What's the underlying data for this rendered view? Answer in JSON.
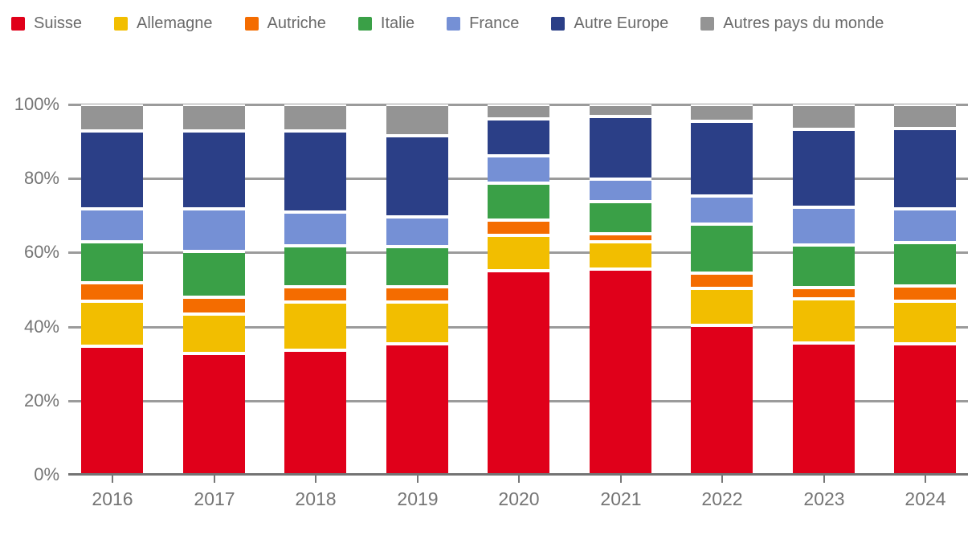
{
  "colors": {
    "background": "#ffffff",
    "gridline": "#9b9b9b",
    "axis_line": "#747474",
    "axis_text": "#757575",
    "legend_text": "#6a6a6a"
  },
  "chart_data": {
    "type": "bar",
    "stacked": true,
    "stacking": "percent",
    "title": "",
    "xlabel": "",
    "ylabel": "",
    "categories": [
      "2016",
      "2017",
      "2018",
      "2019",
      "2020",
      "2021",
      "2022",
      "2023",
      "2024"
    ],
    "series": [
      {
        "name": "Suisse",
        "color": "#e0001a",
        "values": [
          34.8,
          32.7,
          33.6,
          35.4,
          55.0,
          55.5,
          40.3,
          35.5,
          35.4
        ]
      },
      {
        "name": "Allemagne",
        "color": "#f2be00",
        "values": [
          12.1,
          10.6,
          13.0,
          11.3,
          9.7,
          7.5,
          10.0,
          11.9,
          11.5
        ]
      },
      {
        "name": "Autriche",
        "color": "#f46c00",
        "values": [
          4.9,
          4.7,
          4.1,
          4.0,
          4.1,
          2.0,
          4.1,
          3.1,
          4.0
        ]
      },
      {
        "name": "Italie",
        "color": "#3aa047",
        "values": [
          11.0,
          12.3,
          11.2,
          10.8,
          9.9,
          8.8,
          13.2,
          11.6,
          11.8
        ]
      },
      {
        "name": "France",
        "color": "#7590d5",
        "values": [
          9.0,
          11.5,
          9.0,
          8.2,
          7.5,
          6.0,
          7.6,
          10.1,
          9.2
        ]
      },
      {
        "name": "Autre Europe",
        "color": "#2b3f87",
        "values": [
          21.0,
          21.0,
          21.9,
          21.8,
          9.9,
          16.9,
          20.2,
          21.0,
          21.5
        ]
      },
      {
        "name": "Autres pays du monde",
        "color": "#949494",
        "values": [
          7.2,
          7.2,
          7.2,
          8.5,
          3.9,
          3.3,
          4.6,
          6.8,
          6.6
        ]
      }
    ],
    "yticks": [
      "0%",
      "20%",
      "40%",
      "60%",
      "80%",
      "100%"
    ],
    "ytick_values": [
      0,
      20,
      40,
      60,
      80,
      100
    ],
    "ylim": [
      0,
      100
    ],
    "grid": true,
    "legend_position": "top-left"
  }
}
